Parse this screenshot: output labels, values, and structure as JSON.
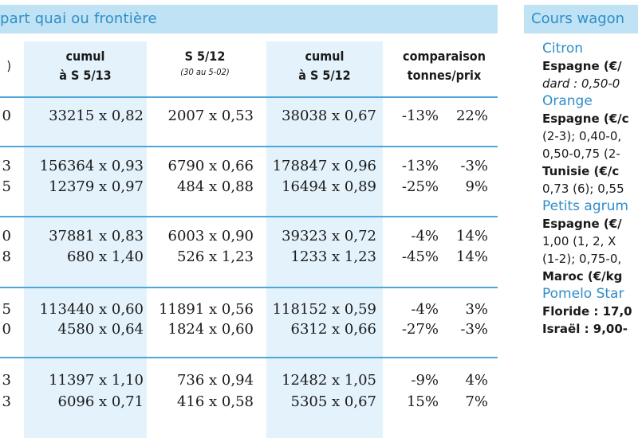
{
  "left_header": "part quai ou frontière",
  "right_header": "Cours wagon",
  "columns": [
    {
      "title": "cumul",
      "sub": "à S 5/13"
    },
    {
      "title": "S 5/12",
      "note": "(30 au 5-02)"
    },
    {
      "title": "cumul",
      "sub": "à S 5/12"
    },
    {
      "title": "comparaison",
      "sub": "tonnes/prix"
    }
  ],
  "col0_head": ")",
  "rows": [
    {
      "c0": "0",
      "c1": "33215 x 0,82",
      "c2": "2007 x 0,53",
      "c3": "38038 x 0,67",
      "c4": "-13%",
      "c5": "22%"
    },
    {
      "c0": "3",
      "c1": "156364 x 0,93",
      "c2": "6790 x 0,66",
      "c3": "178847 x 0,96",
      "c4": "-13%",
      "c5": "-3%"
    },
    {
      "c0": "5",
      "c1": "12379 x 0,97",
      "c2": "484 x 0,88",
      "c3": "16494 x 0,89",
      "c4": "-25%",
      "c5": "9%"
    },
    {
      "c0": "0",
      "c1": "37881 x 0,83",
      "c2": "6003 x 0,90",
      "c3": "39323 x 0,72",
      "c4": "-4%",
      "c5": "14%"
    },
    {
      "c0": "8",
      "c1": "680 x 1,40",
      "c2": "526 x 1,23",
      "c3": "1233 x 1,23",
      "c4": "-45%",
      "c5": "14%"
    },
    {
      "c0": "5",
      "c1": "113440 x 0,60",
      "c2": "11891 x 0,56",
      "c3": "118152 x 0,59",
      "c4": "-4%",
      "c5": "3%"
    },
    {
      "c0": "0",
      "c1": "4580 x 0,64",
      "c2": "1824 x 0,60",
      "c3": "6312 x 0,66",
      "c4": "-27%",
      "c5": "-3%"
    },
    {
      "c0": "3",
      "c1": "11397 x 1,10",
      "c2": "736 x 0,94",
      "c3": "12482 x 1,05",
      "c4": "-9%",
      "c5": "4%"
    },
    {
      "c0": "3",
      "c1": "6096 x 0,71",
      "c2": "416 x 0,58",
      "c3": "5305 x 0,67",
      "c4": "15%",
      "c5": "7%"
    }
  ],
  "sidebar": [
    {
      "cls": "prod",
      "text": "Citron"
    },
    {
      "cls": "b",
      "text": "Espagne (€/"
    },
    {
      "cls": "it",
      "text": "dard : 0,50-0"
    },
    {
      "cls": "prod",
      "text": "Orange"
    },
    {
      "cls": "b",
      "text": "Espagne (€/c"
    },
    {
      "cls": "",
      "text": "(2-3); 0,40-0,"
    },
    {
      "cls": "",
      "text": "0,50-0,75 (2-"
    },
    {
      "cls": "b",
      "text": "Tunisie (€/c"
    },
    {
      "cls": "",
      "text": "0,73 (6); 0,55"
    },
    {
      "cls": "prod",
      "text": "Petits agrum"
    },
    {
      "cls": "b",
      "text": "Espagne (€/"
    },
    {
      "cls": "",
      "text": "1,00 (1, 2, X"
    },
    {
      "cls": "",
      "text": "(1-2); 0,75-0,"
    },
    {
      "cls": "b",
      "text": "Maroc (€/kg"
    },
    {
      "cls": "prod",
      "text": "Pomelo Star"
    },
    {
      "cls": "b",
      "text": "Floride : 17,0"
    },
    {
      "cls": "b",
      "text": "Israël : 9,00-"
    }
  ]
}
